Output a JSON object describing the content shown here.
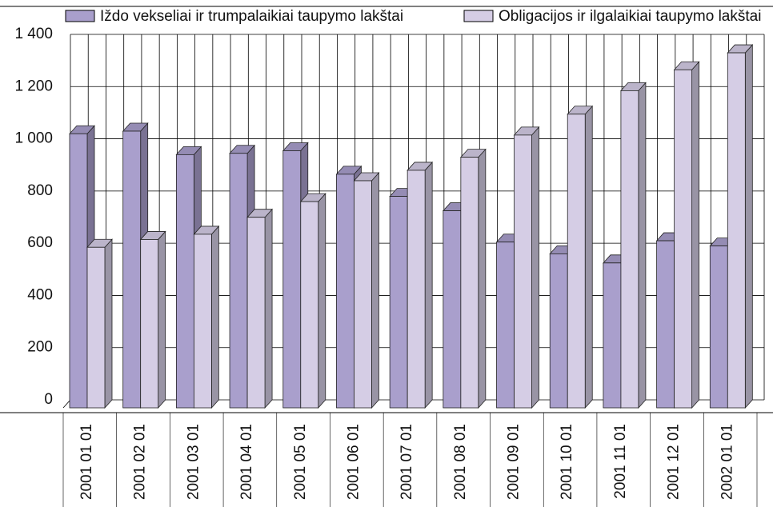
{
  "chart_data": {
    "type": "bar3d",
    "categories": [
      "2001 01 01",
      "2001 02 01",
      "2001 03 01",
      "2001 04 01",
      "2001 05 01",
      "2001 06 01",
      "2001 07 01",
      "2001 08 01",
      "2001 09 01",
      "2001 10 01",
      "2001 11 01",
      "2001 12 01",
      "2002 01 01"
    ],
    "series": [
      {
        "name": "Iždo vekseliai ir trumpalaikiai taupymo lakštai",
        "color": "#a99fcc",
        "values": [
          1050,
          1060,
          970,
          975,
          985,
          895,
          810,
          755,
          635,
          590,
          555,
          640,
          620
        ]
      },
      {
        "name": "Obligacijos ir ilgalaikiai taupymo lakštai",
        "color": "#d5cde5",
        "values": [
          615,
          645,
          665,
          730,
          790,
          870,
          910,
          960,
          1045,
          1125,
          1215,
          1295,
          1360
        ]
      }
    ],
    "ylim": [
      0,
      1400
    ],
    "yticks": [
      0,
      200,
      400,
      600,
      800,
      {
        "value": 1000,
        "label": "1 000"
      },
      {
        "value": 1200,
        "label": "1 200"
      },
      {
        "value": 1400,
        "label": "1 400"
      }
    ],
    "grid": true,
    "legend": "top"
  }
}
